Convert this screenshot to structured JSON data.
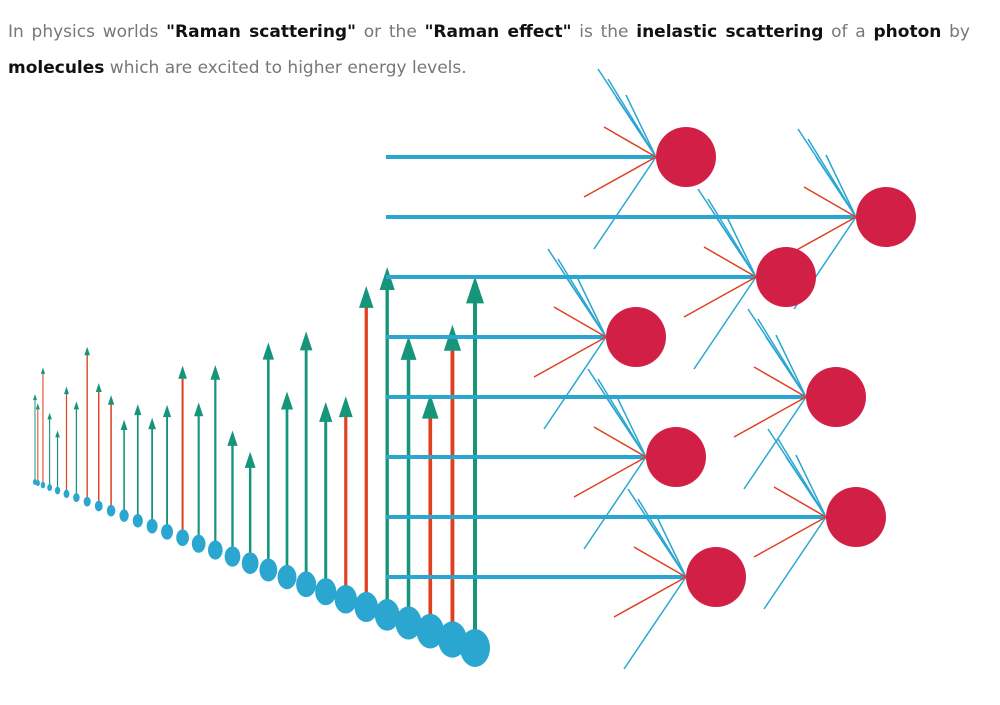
{
  "paragraph": {
    "segments": [
      "In physics worlds ",
      "\"Raman scattering\"",
      " or the ",
      "\"Raman effect\"",
      " is the ",
      "inelastic scattering",
      " of a ",
      "photon",
      " by ",
      "molecules",
      " which are excited to higher energy levels."
    ]
  }
}
